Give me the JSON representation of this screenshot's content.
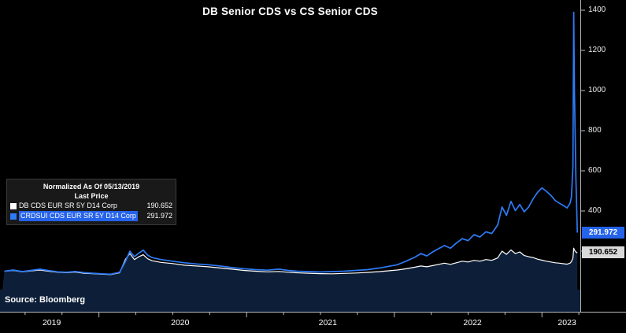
{
  "source": "Source: Bloomberg",
  "chart_data": {
    "type": "line",
    "title": "DB Senior CDS vs CS Senior CDS",
    "normalized_note": "Normalized As Of 05/13/2019",
    "last_price_label": "Last Price",
    "ylim": [
      0,
      1400
    ],
    "y_ticks": [
      200,
      400,
      600,
      800,
      1000,
      1200,
      1400
    ],
    "x_ticks": [
      {
        "label": "2019",
        "pos": 2019.68
      },
      {
        "label": "2020",
        "pos": 2020.55
      },
      {
        "label": "2021",
        "pos": 2021.55
      },
      {
        "label": "2022",
        "pos": 2022.53
      },
      {
        "label": "2023",
        "pos": 2023.17
      }
    ],
    "x_range": [
      2019.33,
      2023.26
    ],
    "grid": false,
    "legend_position": "left-middle",
    "colors": {
      "background": "#000000",
      "area_fill": "#0d1f38",
      "db_line": "#ffffff",
      "cs_line": "#2e7bf6",
      "cs_badge": "#2563eb",
      "db_badge": "#d9d9d9",
      "axis": "#b8bcc2"
    },
    "x": [
      2019.36,
      2019.42,
      2019.48,
      2019.54,
      2019.6,
      2019.66,
      2019.72,
      2019.78,
      2019.84,
      2019.9,
      2019.96,
      2020.02,
      2020.08,
      2020.14,
      2020.18,
      2020.21,
      2020.24,
      2020.27,
      2020.3,
      2020.33,
      2020.36,
      2020.42,
      2020.5,
      2020.58,
      2020.66,
      2020.74,
      2020.82,
      2020.9,
      2020.98,
      2021.06,
      2021.14,
      2021.22,
      2021.28,
      2021.34,
      2021.42,
      2021.5,
      2021.58,
      2021.66,
      2021.74,
      2021.82,
      2021.9,
      2021.96,
      2022.02,
      2022.08,
      2022.14,
      2022.18,
      2022.22,
      2022.26,
      2022.3,
      2022.34,
      2022.38,
      2022.42,
      2022.46,
      2022.5,
      2022.54,
      2022.58,
      2022.62,
      2022.66,
      2022.7,
      2022.73,
      2022.76,
      2022.79,
      2022.82,
      2022.85,
      2022.88,
      2022.91,
      2022.94,
      2022.97,
      2023.0,
      2023.03,
      2023.06,
      2023.09,
      2023.12,
      2023.15,
      2023.17,
      2023.19,
      2023.2,
      2023.21,
      2023.215,
      2023.22,
      2023.23,
      2023.24
    ],
    "series": [
      {
        "name": "DB CDS EUR SR 5Y D14 Corp",
        "color": "#ffffff",
        "last_price": "190.652",
        "values": [
          100,
          104,
          97,
          101,
          106,
          100,
          95,
          93,
          96,
          90,
          88,
          85,
          83,
          92,
          160,
          188,
          158,
          172,
          182,
          162,
          152,
          144,
          138,
          130,
          126,
          122,
          116,
          110,
          104,
          100,
          97,
          99,
          95,
          92,
          90,
          88,
          87,
          89,
          91,
          94,
          98,
          102,
          106,
          112,
          120,
          126,
          122,
          128,
          134,
          140,
          134,
          142,
          150,
          146,
          154,
          150,
          158,
          154,
          166,
          200,
          184,
          206,
          188,
          196,
          178,
          172,
          168,
          160,
          155,
          150,
          146,
          142,
          140,
          137,
          135,
          140,
          148,
          165,
          215,
          205,
          196,
          190.652
        ]
      },
      {
        "name": "CRDSUI CDS EUR SR 5Y D14 Corp",
        "color": "#2e7bf6",
        "last_price": "291.972",
        "values": [
          100,
          106,
          98,
          104,
          110,
          103,
          97,
          95,
          99,
          93,
          90,
          87,
          85,
          95,
          150,
          200,
          172,
          190,
          205,
          180,
          168,
          158,
          150,
          142,
          136,
          132,
          126,
          118,
          112,
          108,
          105,
          110,
          104,
          100,
          98,
          96,
          98,
          100,
          104,
          108,
          116,
          124,
          132,
          150,
          170,
          188,
          176,
          196,
          212,
          228,
          214,
          240,
          262,
          252,
          282,
          270,
          296,
          288,
          330,
          420,
          378,
          448,
          402,
          432,
          396,
          420,
          460,
          492,
          515,
          498,
          478,
          452,
          438,
          425,
          415,
          438,
          470,
          620,
          1390,
          1000,
          560,
          291.972
        ]
      }
    ]
  }
}
